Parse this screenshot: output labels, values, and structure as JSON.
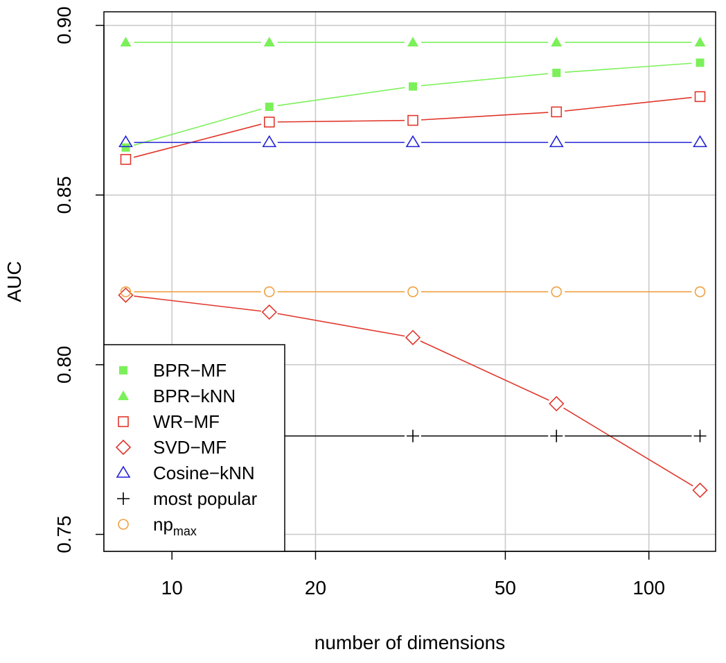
{
  "chart_data": {
    "type": "line",
    "xlabel": "number of dimensions",
    "ylabel": "AUC",
    "xscale": "log",
    "xlim": [
      7.2,
      138
    ],
    "ylim": [
      0.745,
      0.904
    ],
    "grid": true,
    "legend_position": "bottom-left",
    "x": [
      8,
      16,
      32,
      64,
      128
    ],
    "x_ticks": [
      10,
      20,
      50,
      100
    ],
    "x_tick_labels": [
      "10",
      "20",
      "50",
      "100"
    ],
    "y_ticks": [
      0.75,
      0.8,
      0.85,
      0.9
    ],
    "y_tick_labels": [
      "0.75",
      "0.80",
      "0.85",
      "0.90"
    ],
    "series": [
      {
        "name": "BPR−MF",
        "color": "#7cf05a",
        "marker": "filled-square",
        "values": [
          0.864,
          0.876,
          0.882,
          0.886,
          0.889
        ]
      },
      {
        "name": "BPR−kNN",
        "color": "#7cf05a",
        "marker": "filled-triangle",
        "values": [
          0.895,
          0.895,
          0.895,
          0.895,
          0.895
        ]
      },
      {
        "name": "WR−MF",
        "color": "#e0362b",
        "marker": "open-square",
        "values": [
          0.8605,
          0.8715,
          0.872,
          0.8745,
          0.879
        ]
      },
      {
        "name": "SVD−MF",
        "color": "#e0362b",
        "marker": "open-diamond",
        "values": [
          0.8205,
          0.8155,
          0.808,
          0.7885,
          0.763
        ]
      },
      {
        "name": "Cosine−kNN",
        "color": "#1f1fd6",
        "marker": "open-triangle",
        "values": [
          0.8655,
          0.8655,
          0.8655,
          0.8655,
          0.8655
        ]
      },
      {
        "name": "most popular",
        "color": "#000000",
        "marker": "plus",
        "values": [
          0.779,
          0.779,
          0.779,
          0.779,
          0.779
        ]
      },
      {
        "name": "np",
        "name_subscript": "max",
        "color": "#f0a040",
        "marker": "open-circle",
        "values": [
          0.8215,
          0.8215,
          0.8215,
          0.8215,
          0.8215
        ]
      }
    ]
  }
}
